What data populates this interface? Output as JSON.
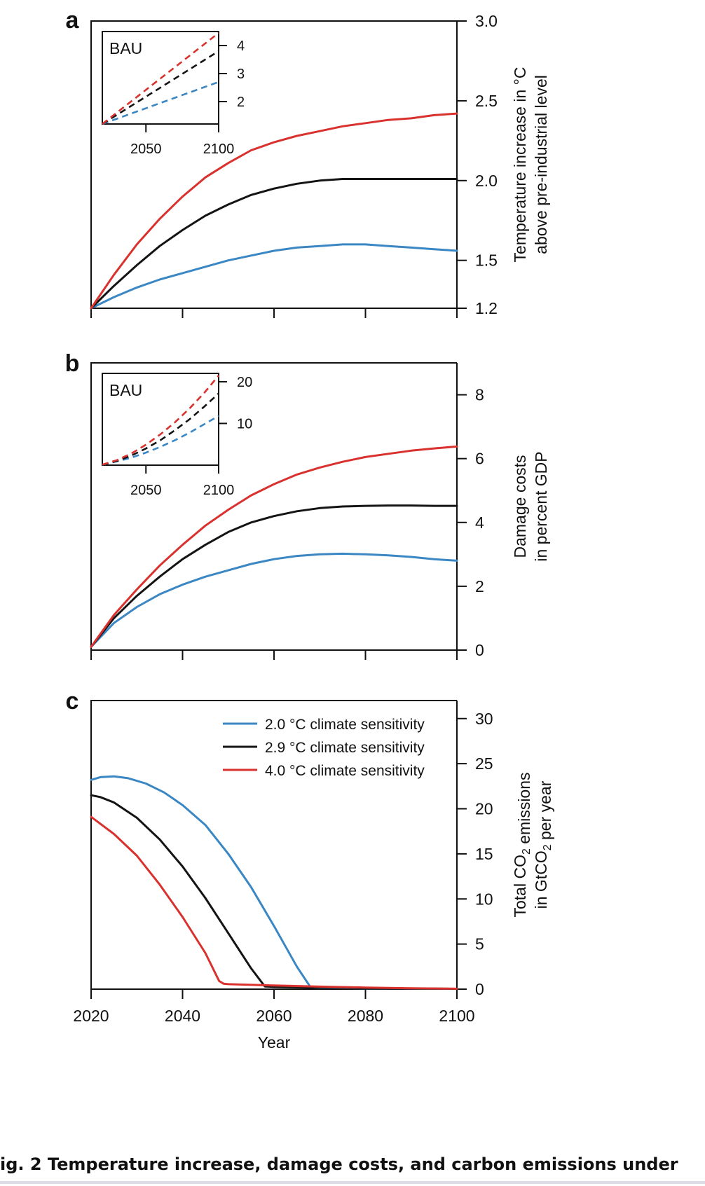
{
  "colors": {
    "cs2_0": "#3a87c4",
    "cs2_9": "#141414",
    "cs4_0": "#d9322e",
    "axis": "#111111"
  },
  "caption": "ig. 2 Temperature increase, damage costs, and carbon emissions under",
  "chart_data": [
    {
      "panel": "a",
      "type": "line",
      "ylabel_lines": [
        "Temperature increase in °C",
        "above pre-industrial level"
      ],
      "xlim": [
        2020,
        2100
      ],
      "ylim": [
        1.2,
        3.0
      ],
      "yticks": [
        1.2,
        1.5,
        2.0,
        2.5,
        3.0
      ],
      "ytick_labels": [
        "1.2",
        "1.5",
        "2.0",
        "2.5",
        "3.0"
      ],
      "xticks": [
        2020,
        2040,
        2060,
        2080,
        2100
      ],
      "x": [
        2020,
        2025,
        2030,
        2035,
        2040,
        2045,
        2050,
        2055,
        2060,
        2065,
        2070,
        2075,
        2080,
        2085,
        2090,
        2095,
        2100
      ],
      "series": [
        {
          "name": "2.0 °C climate sensitivity",
          "color_key": "cs2_0",
          "values": [
            1.2,
            1.27,
            1.33,
            1.38,
            1.42,
            1.46,
            1.5,
            1.53,
            1.56,
            1.58,
            1.59,
            1.6,
            1.6,
            1.59,
            1.58,
            1.57,
            1.56
          ]
        },
        {
          "name": "2.9 °C climate sensitivity",
          "color_key": "cs2_9",
          "values": [
            1.2,
            1.34,
            1.47,
            1.59,
            1.69,
            1.78,
            1.85,
            1.91,
            1.95,
            1.98,
            2.0,
            2.01,
            2.01,
            2.01,
            2.01,
            2.01,
            2.01
          ]
        },
        {
          "name": "4.0 °C climate sensitivity",
          "color_key": "cs4_0",
          "values": [
            1.2,
            1.41,
            1.6,
            1.76,
            1.9,
            2.02,
            2.11,
            2.19,
            2.24,
            2.28,
            2.31,
            2.34,
            2.36,
            2.38,
            2.39,
            2.41,
            2.42
          ]
        }
      ],
      "inset": {
        "title": "BAU",
        "xlim": [
          2020,
          2100
        ],
        "ylim": [
          1.2,
          4.5
        ],
        "xticks": [
          2050,
          2100
        ],
        "xtick_labels": [
          "2050",
          "2100"
        ],
        "yticks": [
          2,
          3,
          4
        ],
        "ytick_labels": [
          "2",
          "3",
          "4"
        ],
        "x": [
          2020,
          2100
        ],
        "series": [
          {
            "color_key": "cs2_0",
            "style": "dashed",
            "values": [
              1.2,
              2.7
            ]
          },
          {
            "color_key": "cs2_9",
            "style": "dashed",
            "values": [
              1.2,
              3.8
            ]
          },
          {
            "color_key": "cs4_0",
            "style": "dashed",
            "values": [
              1.2,
              4.45
            ]
          }
        ]
      }
    },
    {
      "panel": "b",
      "type": "line",
      "ylabel_lines": [
        "Damage costs",
        "in percent GDP"
      ],
      "xlim": [
        2020,
        2100
      ],
      "ylim": [
        0,
        9
      ],
      "yticks": [
        0,
        2,
        4,
        6,
        8
      ],
      "ytick_labels": [
        "0",
        "2",
        "4",
        "6",
        "8"
      ],
      "xticks": [
        2020,
        2040,
        2060,
        2080,
        2100
      ],
      "x": [
        2020,
        2025,
        2030,
        2035,
        2040,
        2045,
        2050,
        2055,
        2060,
        2065,
        2070,
        2075,
        2080,
        2085,
        2090,
        2095,
        2100
      ],
      "series": [
        {
          "name": "2.0 °C climate sensitivity",
          "color_key": "cs2_0",
          "values": [
            0.1,
            0.85,
            1.35,
            1.75,
            2.05,
            2.3,
            2.5,
            2.7,
            2.85,
            2.95,
            3.0,
            3.02,
            3.0,
            2.97,
            2.92,
            2.85,
            2.8
          ]
        },
        {
          "name": "2.9 °C climate sensitivity",
          "color_key": "cs2_9",
          "values": [
            0.1,
            1.0,
            1.7,
            2.3,
            2.85,
            3.3,
            3.7,
            4.0,
            4.2,
            4.35,
            4.45,
            4.5,
            4.52,
            4.53,
            4.53,
            4.52,
            4.52
          ]
        },
        {
          "name": "4.0 °C climate sensitivity",
          "color_key": "cs4_0",
          "values": [
            0.1,
            1.1,
            1.9,
            2.65,
            3.3,
            3.9,
            4.4,
            4.85,
            5.2,
            5.5,
            5.72,
            5.9,
            6.05,
            6.15,
            6.25,
            6.32,
            6.38
          ]
        }
      ],
      "inset": {
        "title": "BAU",
        "xlim": [
          2020,
          2100
        ],
        "ylim": [
          0,
          22
        ],
        "xticks": [
          2050,
          2100
        ],
        "xtick_labels": [
          "2050",
          "2100"
        ],
        "yticks": [
          10,
          20
        ],
        "ytick_labels": [
          "10",
          "20"
        ],
        "x": [
          2020,
          2030,
          2040,
          2050,
          2060,
          2070,
          2080,
          2090,
          2100
        ],
        "series": [
          {
            "color_key": "cs2_0",
            "style": "dashed",
            "values": [
              0.1,
              0.9,
              1.8,
              3.0,
              4.4,
              6.0,
              7.8,
              9.8,
              11.8
            ]
          },
          {
            "color_key": "cs2_9",
            "style": "dashed",
            "values": [
              0.1,
              1.0,
              2.3,
              4.0,
              6.0,
              8.4,
              11.0,
              14.0,
              17.2
            ]
          },
          {
            "color_key": "cs4_0",
            "style": "dashed",
            "values": [
              0.1,
              1.2,
              2.8,
              4.9,
              7.4,
              10.3,
              13.6,
              17.3,
              21.5
            ]
          }
        ]
      }
    },
    {
      "panel": "c",
      "type": "line",
      "xlabel": "Year",
      "ylabel_lines": [
        "Total CO2 emissions",
        "in GtCO2 per year"
      ],
      "xlim": [
        2020,
        2100
      ],
      "ylim": [
        0,
        32
      ],
      "yticks": [
        0,
        5,
        10,
        15,
        20,
        25,
        30
      ],
      "ytick_labels": [
        "0",
        "5",
        "10",
        "15",
        "20",
        "25",
        "30"
      ],
      "xticks": [
        2020,
        2040,
        2060,
        2080,
        2100
      ],
      "xtick_labels": [
        "2020",
        "2040",
        "2060",
        "2080",
        "2100"
      ],
      "legend_position": "top-right",
      "series": [
        {
          "name": "2.0 °C climate sensitivity",
          "color_key": "cs2_0",
          "x": [
            2020,
            2022,
            2025,
            2028,
            2032,
            2036,
            2040,
            2045,
            2050,
            2055,
            2060,
            2065,
            2068,
            2070,
            2080,
            2090,
            2100
          ],
          "values": [
            23.2,
            23.5,
            23.6,
            23.4,
            22.8,
            21.8,
            20.4,
            18.2,
            15.0,
            11.3,
            7.0,
            2.5,
            0.2,
            0.15,
            0.1,
            0.06,
            0.03
          ]
        },
        {
          "name": "2.9 °C climate sensitivity",
          "color_key": "cs2_9",
          "x": [
            2020,
            2022,
            2025,
            2030,
            2035,
            2040,
            2045,
            2050,
            2055,
            2058,
            2060,
            2070,
            2080,
            2090,
            2100
          ],
          "values": [
            21.5,
            21.3,
            20.7,
            19.0,
            16.6,
            13.6,
            10.1,
            6.2,
            2.3,
            0.3,
            0.25,
            0.18,
            0.12,
            0.07,
            0.04
          ]
        },
        {
          "name": "4.0 °C climate sensitivity",
          "color_key": "cs4_0",
          "x": [
            2020,
            2025,
            2030,
            2035,
            2040,
            2045,
            2048,
            2049,
            2050,
            2060,
            2070,
            2080,
            2090,
            2100
          ],
          "values": [
            19.1,
            17.2,
            14.8,
            11.6,
            8.0,
            4.0,
            0.9,
            0.6,
            0.55,
            0.4,
            0.28,
            0.18,
            0.1,
            0.05
          ]
        }
      ]
    }
  ]
}
